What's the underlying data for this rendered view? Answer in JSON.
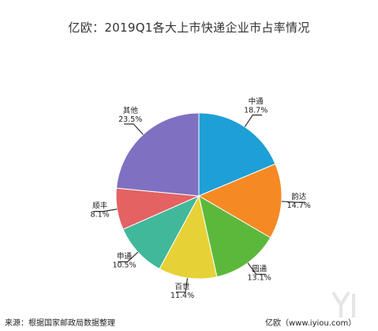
{
  "title": "亿欧：2019Q1各大上市快递企业市占率情况",
  "footer": {
    "source": "来源：根据国家邮政局数据整理",
    "credit": "亿欧（www.iyiou.com）"
  },
  "chart_data": {
    "type": "pie",
    "title": "亿欧：2019Q1各大上市快递企业市占率情况",
    "unit": "%",
    "start": "12 o'clock, clockwise",
    "slices": [
      {
        "name": "中通",
        "value": 18.7,
        "label": "18.7%",
        "color": "#1e9fd6"
      },
      {
        "name": "韵达",
        "value": 14.7,
        "label": "14.7%",
        "color": "#f58a24"
      },
      {
        "name": "圆通",
        "value": 13.1,
        "label": "13.1%",
        "color": "#5cb83a"
      },
      {
        "name": "百世",
        "value": 11.4,
        "label": "11.4%",
        "color": "#e6d237"
      },
      {
        "name": "申通",
        "value": 10.5,
        "label": "10.5%",
        "color": "#42b89a"
      },
      {
        "name": "顺丰",
        "value": 8.1,
        "label": "8.1%",
        "color": "#e46262"
      },
      {
        "name": "其他",
        "value": 23.5,
        "label": "23.5%",
        "color": "#8070c2"
      }
    ]
  }
}
